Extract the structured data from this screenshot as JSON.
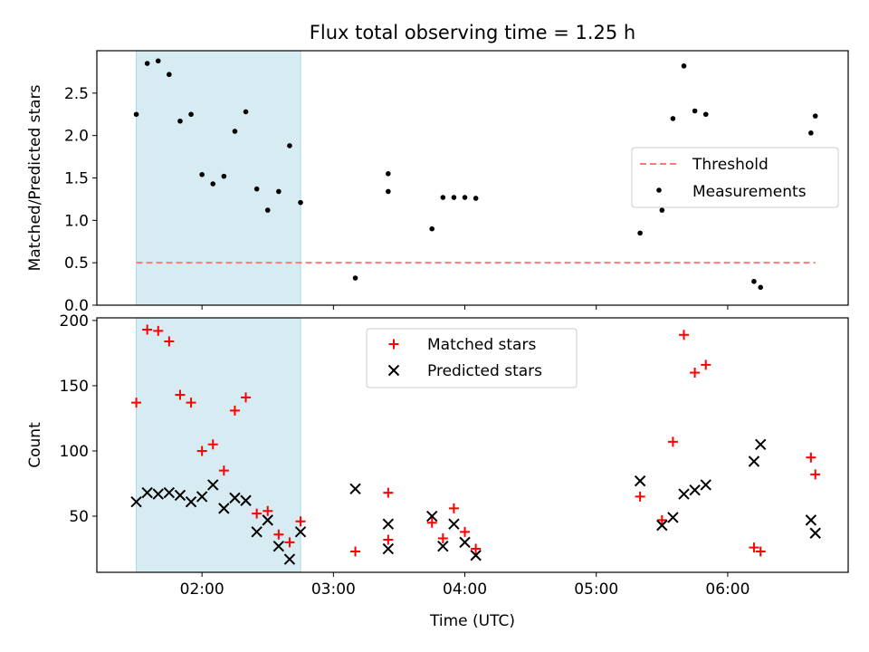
{
  "figure": {
    "title": "Flux total observing time = 1.25 h",
    "xlabel": "Time (UTC)"
  },
  "colors": {
    "shade": "#add8e6",
    "threshold": "#ff7b7b",
    "measurement": "#000000",
    "matched": "#ff0000",
    "predicted": "#000000"
  },
  "chart_data": [
    {
      "type": "scatter",
      "ylabel": "Matched/Predicted stars",
      "xlim": [
        "01:12",
        "06:55"
      ],
      "ylim": [
        0,
        3.0
      ],
      "yticks": [
        0.0,
        0.5,
        1.0,
        1.5,
        2.0,
        2.5
      ],
      "ytick_labels": [
        "0.0",
        "0.5",
        "1.0",
        "1.5",
        "2.0",
        "2.5"
      ],
      "xticks": [
        "02:00",
        "03:00",
        "04:00",
        "05:00",
        "06:00"
      ],
      "shaded_interval": [
        "01:30",
        "02:45"
      ],
      "legend": {
        "placement": "center-right",
        "entries": [
          "Threshold",
          "Measurements"
        ]
      },
      "threshold": {
        "name": "Threshold",
        "value": 0.5,
        "x_range": [
          "01:30",
          "06:40"
        ]
      },
      "series": [
        {
          "name": "Measurements",
          "marker": "dot",
          "points": [
            [
              "01:30",
              2.25
            ],
            [
              "01:35",
              2.85
            ],
            [
              "01:40",
              2.88
            ],
            [
              "01:45",
              2.72
            ],
            [
              "01:50",
              2.17
            ],
            [
              "01:55",
              2.25
            ],
            [
              "02:00",
              1.54
            ],
            [
              "02:05",
              1.43
            ],
            [
              "02:10",
              1.52
            ],
            [
              "02:15",
              2.05
            ],
            [
              "02:20",
              2.28
            ],
            [
              "02:25",
              1.37
            ],
            [
              "02:30",
              1.12
            ],
            [
              "02:35",
              1.34
            ],
            [
              "02:40",
              1.88
            ],
            [
              "02:45",
              1.21
            ],
            [
              "03:10",
              0.32
            ],
            [
              "03:25",
              1.55
            ],
            [
              "03:25",
              1.34
            ],
            [
              "03:45",
              0.9
            ],
            [
              "03:50",
              1.27
            ],
            [
              "03:55",
              1.27
            ],
            [
              "04:00",
              1.27
            ],
            [
              "04:05",
              1.26
            ],
            [
              "05:20",
              0.85
            ],
            [
              "05:30",
              1.12
            ],
            [
              "05:35",
              2.2
            ],
            [
              "05:40",
              2.82
            ],
            [
              "05:45",
              2.29
            ],
            [
              "05:50",
              2.25
            ],
            [
              "06:12",
              0.28
            ],
            [
              "06:15",
              0.21
            ],
            [
              "06:38",
              2.03
            ],
            [
              "06:40",
              2.23
            ]
          ]
        }
      ]
    },
    {
      "type": "scatter",
      "ylabel": "Count",
      "xlim": [
        "01:12",
        "06:55"
      ],
      "ylim": [
        7,
        202
      ],
      "yticks": [
        50,
        100,
        150,
        200
      ],
      "ytick_labels": [
        "50",
        "100",
        "150",
        "200"
      ],
      "xticks": [
        "02:00",
        "03:00",
        "04:00",
        "05:00",
        "06:00"
      ],
      "xtick_labels": [
        "02:00",
        "03:00",
        "04:00",
        "05:00",
        "06:00"
      ],
      "shaded_interval": [
        "01:30",
        "02:45"
      ],
      "legend": {
        "placement": "top-center",
        "entries": [
          "Matched stars",
          "Predicted stars"
        ]
      },
      "series": [
        {
          "name": "Matched stars",
          "marker": "plus",
          "points": [
            [
              "01:30",
              137
            ],
            [
              "01:35",
              193
            ],
            [
              "01:40",
              192
            ],
            [
              "01:45",
              184
            ],
            [
              "01:50",
              143
            ],
            [
              "01:55",
              137
            ],
            [
              "02:00",
              100
            ],
            [
              "02:05",
              105
            ],
            [
              "02:10",
              85
            ],
            [
              "02:15",
              131
            ],
            [
              "02:20",
              141
            ],
            [
              "02:25",
              52
            ],
            [
              "02:30",
              54
            ],
            [
              "02:35",
              36
            ],
            [
              "02:40",
              30
            ],
            [
              "02:45",
              46
            ],
            [
              "03:10",
              23
            ],
            [
              "03:25",
              68
            ],
            [
              "03:25",
              32
            ],
            [
              "03:45",
              45
            ],
            [
              "03:50",
              33
            ],
            [
              "03:55",
              56
            ],
            [
              "04:00",
              38
            ],
            [
              "04:05",
              25
            ],
            [
              "05:20",
              65
            ],
            [
              "05:30",
              47
            ],
            [
              "05:35",
              107
            ],
            [
              "05:40",
              189
            ],
            [
              "05:45",
              160
            ],
            [
              "05:50",
              166
            ],
            [
              "06:12",
              26
            ],
            [
              "06:15",
              23
            ],
            [
              "06:38",
              95
            ],
            [
              "06:40",
              82
            ]
          ]
        },
        {
          "name": "Predicted stars",
          "marker": "x",
          "points": [
            [
              "01:30",
              61
            ],
            [
              "01:35",
              68
            ],
            [
              "01:40",
              67
            ],
            [
              "01:45",
              68
            ],
            [
              "01:50",
              66
            ],
            [
              "01:55",
              61
            ],
            [
              "02:00",
              65
            ],
            [
              "02:05",
              74
            ],
            [
              "02:10",
              56
            ],
            [
              "02:15",
              64
            ],
            [
              "02:20",
              62
            ],
            [
              "02:25",
              38
            ],
            [
              "02:30",
              47
            ],
            [
              "02:35",
              27
            ],
            [
              "02:40",
              17
            ],
            [
              "02:45",
              38
            ],
            [
              "03:10",
              71
            ],
            [
              "03:25",
              44
            ],
            [
              "03:25",
              25
            ],
            [
              "03:45",
              50
            ],
            [
              "03:50",
              27
            ],
            [
              "03:55",
              44
            ],
            [
              "04:00",
              30
            ],
            [
              "04:05",
              20
            ],
            [
              "05:20",
              77
            ],
            [
              "05:30",
              43
            ],
            [
              "05:35",
              49
            ],
            [
              "05:40",
              67
            ],
            [
              "05:45",
              70
            ],
            [
              "05:50",
              74
            ],
            [
              "06:12",
              92
            ],
            [
              "06:15",
              105
            ],
            [
              "06:38",
              47
            ],
            [
              "06:40",
              37
            ]
          ]
        }
      ]
    }
  ]
}
